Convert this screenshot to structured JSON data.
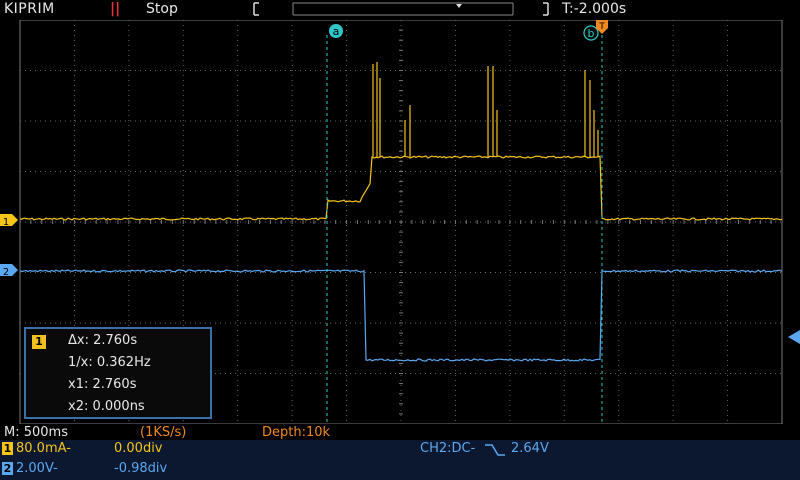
{
  "header": {
    "brand": "KIPRIM",
    "run_state_icon": "pause-icon",
    "run_state": "Stop",
    "trigger_time": "T:-2.000s"
  },
  "cursors": {
    "a_label": "a",
    "b_label": "b",
    "trigger_marker": "T"
  },
  "channels": {
    "ch1_marker": "1",
    "ch2_marker": "2",
    "ch1_color": "#f5c518",
    "ch2_color": "#5aa8f0"
  },
  "measure": {
    "channel": "1",
    "dx": "Δx: 2.760s",
    "inv_dx": "1/x: 0.362Hz",
    "x1": "x1: 2.760s",
    "x2": "x2: 0.000ns"
  },
  "timebase": {
    "main": "M: 500ms",
    "rate": "(1KS/s)",
    "depth": "Depth:10k"
  },
  "status": {
    "ch1_num": "1",
    "ch1_scale": "80.0mA-",
    "ch1_offset": "0.00div",
    "ch2_num": "2",
    "ch2_scale": "2.00V-",
    "ch2_offset": "-0.98div",
    "trigger_source": "CH2:DC-",
    "trigger_level": "2.64V"
  }
}
